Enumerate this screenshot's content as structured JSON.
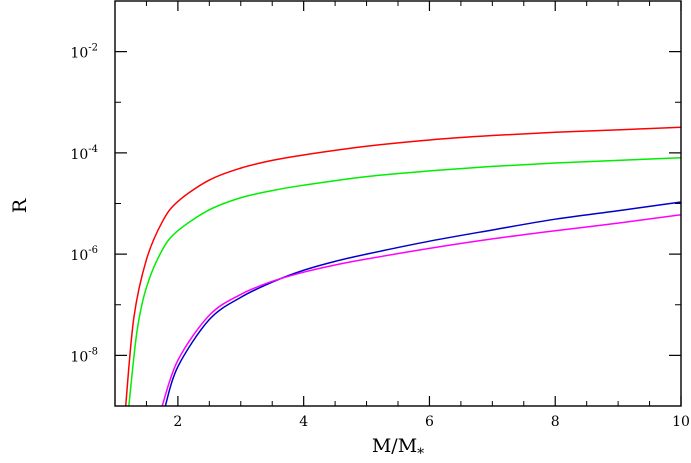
{
  "chart_data": {
    "type": "line",
    "xlabel": "M/M",
    "xlabel_subscript": "*",
    "ylabel": "R",
    "xlim": [
      1,
      10
    ],
    "ylim": [
      1e-09,
      0.1
    ],
    "yscale": "log",
    "grid": false,
    "x_ticks": [
      {
        "value": 2,
        "label": "2"
      },
      {
        "value": 4,
        "label": "4"
      },
      {
        "value": 6,
        "label": "6"
      },
      {
        "value": 8,
        "label": "8"
      },
      {
        "value": 10,
        "label": "10"
      }
    ],
    "y_ticks": [
      {
        "value": 1e-08,
        "base": "10",
        "exp": "-8"
      },
      {
        "value": 1e-06,
        "base": "10",
        "exp": "-6"
      },
      {
        "value": 0.0001,
        "base": "10",
        "exp": "-4"
      },
      {
        "value": 0.01,
        "base": "10",
        "exp": "-2"
      }
    ],
    "series": [
      {
        "color": "#ff0000",
        "x": [
          1.17,
          1.3,
          1.5,
          1.75,
          2.0,
          2.5,
          3.0,
          3.5,
          4.0,
          5.0,
          6.0,
          7.0,
          8.0,
          9.0,
          10.0
        ],
        "y": [
          1e-09,
          5.6e-08,
          7.8e-07,
          4.3e-06,
          1.1e-05,
          2.9e-05,
          5e-05,
          7.1e-05,
          9.1e-05,
          0.000135,
          0.00018,
          0.00022,
          0.000255,
          0.000285,
          0.00032
        ]
      },
      {
        "color": "#00ee00",
        "x": [
          1.22,
          1.35,
          1.5,
          1.75,
          2.0,
          2.5,
          3.0,
          3.5,
          4.0,
          5.0,
          6.0,
          7.0,
          8.0,
          9.0,
          10.0
        ],
        "y": [
          1e-09,
          3e-08,
          2.2e-07,
          1.2e-06,
          2.9e-06,
          7.5e-06,
          1.3e-05,
          1.8e-05,
          2.3e-05,
          3.4e-05,
          4.4e-05,
          5.4e-05,
          6.3e-05,
          7.1e-05,
          8e-05
        ]
      },
      {
        "color": "#0000cc",
        "x": [
          1.8,
          2.0,
          2.5,
          3.0,
          3.5,
          4.0,
          4.5,
          5.0,
          6.0,
          7.0,
          8.0,
          9.0,
          10.0
        ],
        "y": [
          1e-09,
          6e-09,
          5.1e-08,
          1.4e-07,
          2.8e-07,
          4.8e-07,
          7.2e-07,
          1e-06,
          1.8e-06,
          3e-06,
          4.9e-06,
          7.2e-06,
          1.07e-05
        ]
      },
      {
        "color": "#ff00ff",
        "x": [
          1.75,
          2.0,
          2.5,
          3.0,
          3.5,
          4.0,
          4.5,
          5.0,
          6.0,
          7.0,
          8.0,
          9.0,
          10.0
        ],
        "y": [
          1e-09,
          8e-09,
          6.2e-08,
          1.6e-07,
          2.9e-07,
          4.4e-07,
          6.1e-07,
          8e-07,
          1.3e-06,
          2e-06,
          2.9e-06,
          4.1e-06,
          6e-06
        ]
      }
    ]
  }
}
